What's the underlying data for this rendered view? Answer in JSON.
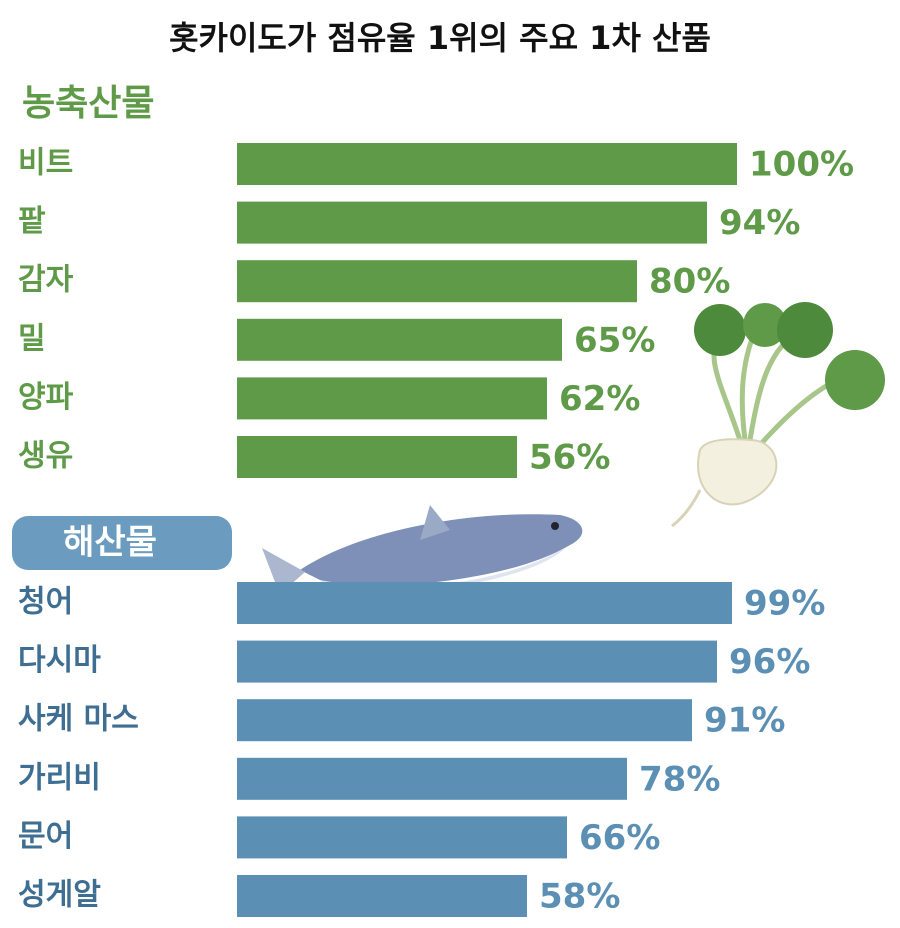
{
  "title": "홋카이도가 점유율 1위의 주요 1차 산품",
  "chart_data": [
    {
      "type": "bar",
      "subtitle": "농축산물",
      "color": "#5e9a47",
      "categories": [
        "비트",
        "팥",
        "감자",
        "밀",
        "양파",
        "생유"
      ],
      "values": [
        100,
        94,
        80,
        65,
        62,
        56
      ],
      "value_labels": [
        "100%",
        "94%",
        "80%",
        "65%",
        "62%",
        "56%"
      ]
    },
    {
      "type": "bar",
      "subtitle": "해산물",
      "color": "#5b8fb4",
      "categories": [
        "청어",
        "다시마",
        "사케 마스",
        "가리비",
        "문어",
        "성게알"
      ],
      "values": [
        99,
        96,
        91,
        78,
        66,
        58
      ],
      "value_labels": [
        "99%",
        "96%",
        "91%",
        "78%",
        "66%",
        "58%"
      ]
    }
  ]
}
